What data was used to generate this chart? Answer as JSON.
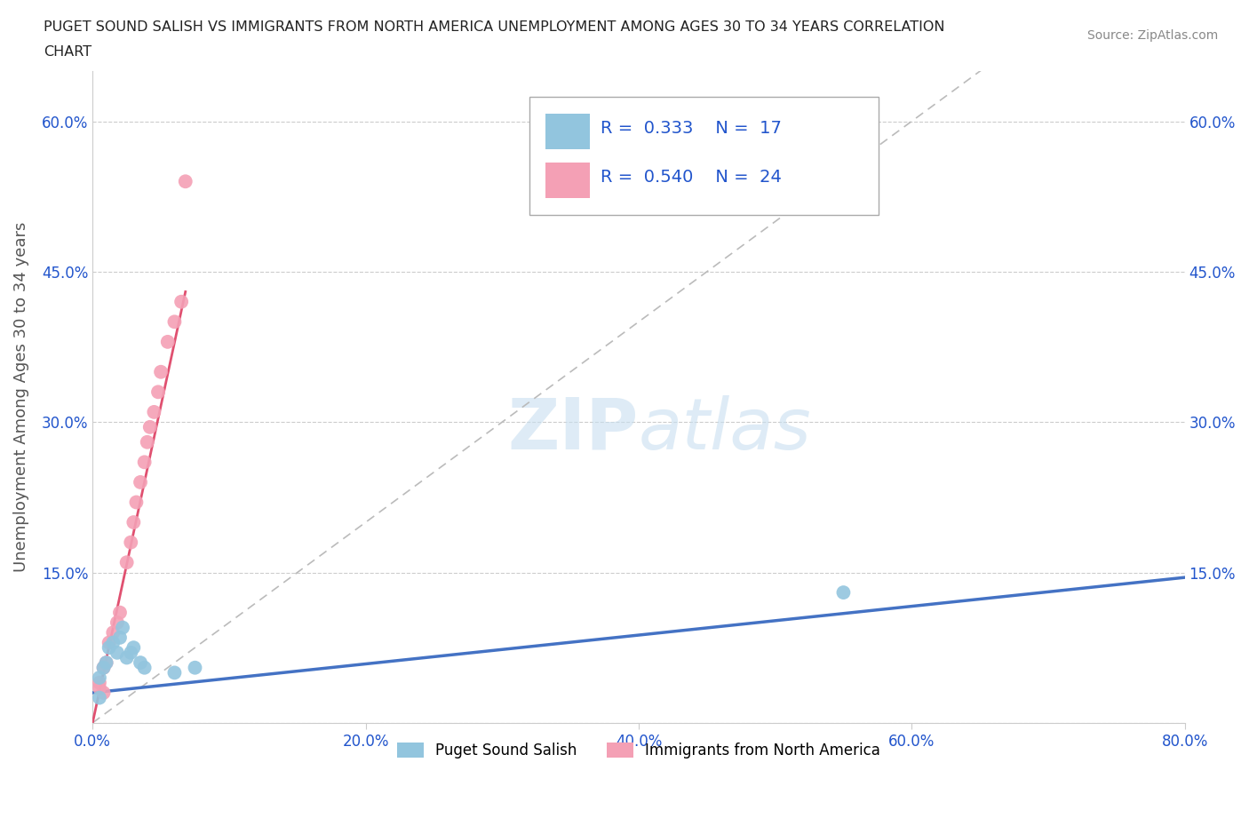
{
  "title_line1": "PUGET SOUND SALISH VS IMMIGRANTS FROM NORTH AMERICA UNEMPLOYMENT AMONG AGES 30 TO 34 YEARS CORRELATION",
  "title_line2": "CHART",
  "source": "Source: ZipAtlas.com",
  "ylabel": "Unemployment Among Ages 30 to 34 years",
  "xlim": [
    0.0,
    0.8
  ],
  "ylim": [
    0.0,
    0.65
  ],
  "xticks": [
    0.0,
    0.2,
    0.4,
    0.6,
    0.8
  ],
  "xticklabels": [
    "0.0%",
    "20.0%",
    "40.0%",
    "60.0%",
    "80.0%"
  ],
  "yticks": [
    0.0,
    0.15,
    0.3,
    0.45,
    0.6
  ],
  "yticklabels": [
    "",
    "15.0%",
    "30.0%",
    "45.0%",
    "60.0%"
  ],
  "grid_color": "#cccccc",
  "background_color": "#ffffff",
  "blue_scatter_x": [
    0.005,
    0.008,
    0.01,
    0.012,
    0.015,
    0.018,
    0.02,
    0.022,
    0.025,
    0.028,
    0.03,
    0.035,
    0.038,
    0.06,
    0.075,
    0.55,
    0.005
  ],
  "blue_scatter_y": [
    0.045,
    0.055,
    0.06,
    0.075,
    0.08,
    0.07,
    0.085,
    0.095,
    0.065,
    0.07,
    0.075,
    0.06,
    0.055,
    0.05,
    0.055,
    0.13,
    0.025
  ],
  "pink_scatter_x": [
    0.005,
    0.008,
    0.01,
    0.012,
    0.015,
    0.018,
    0.02,
    0.025,
    0.028,
    0.03,
    0.032,
    0.035,
    0.038,
    0.04,
    0.042,
    0.045,
    0.048,
    0.05,
    0.055,
    0.06,
    0.065,
    0.068,
    0.005,
    0.008
  ],
  "pink_scatter_y": [
    0.04,
    0.055,
    0.06,
    0.08,
    0.09,
    0.1,
    0.11,
    0.16,
    0.18,
    0.2,
    0.22,
    0.24,
    0.26,
    0.28,
    0.295,
    0.31,
    0.33,
    0.35,
    0.38,
    0.4,
    0.42,
    0.54,
    0.035,
    0.03
  ],
  "blue_color": "#92C5DE",
  "pink_color": "#F4A0B5",
  "blue_line_color": "#4472C4",
  "pink_line_color": "#E05070",
  "gray_dash_color": "#bbbbbb",
  "R_blue": 0.333,
  "N_blue": 17,
  "R_pink": 0.54,
  "N_pink": 24,
  "legend_labels": [
    "Puget Sound Salish",
    "Immigrants from North America"
  ],
  "title_color": "#222222",
  "axis_color": "#555555",
  "tick_color": "#2255CC",
  "source_color": "#888888",
  "watermark_color": "#C8DFF0"
}
